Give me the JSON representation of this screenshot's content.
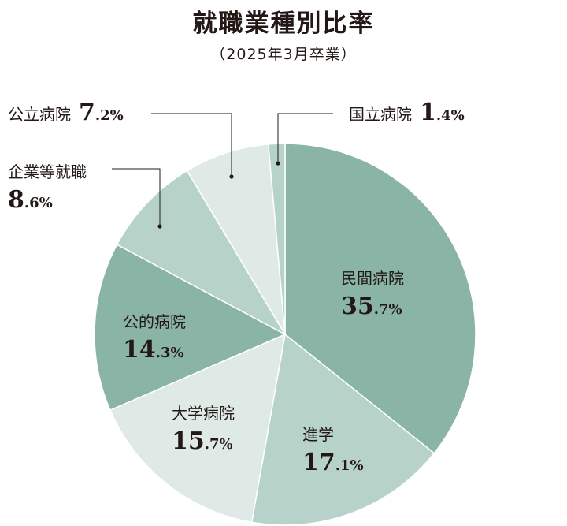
{
  "header": {
    "title": "就職業種別比率",
    "subtitle": "（2025年3月卒業）"
  },
  "chart_data": {
    "type": "pie",
    "title": "就職業種別比率",
    "subtitle": "（2025年3月卒業）",
    "unit": "%",
    "start": "12 o'clock",
    "direction": "clockwise",
    "slices": [
      {
        "label": "民間病院",
        "value": 35.7,
        "int": "35",
        "dec": ".7",
        "color": "#8ab4a6"
      },
      {
        "label": "進学",
        "value": 17.1,
        "int": "17",
        "dec": ".1",
        "color": "#b7d3c9"
      },
      {
        "label": "大学病院",
        "value": 15.7,
        "int": "15",
        "dec": ".7",
        "color": "#dfeae6"
      },
      {
        "label": "公的病院",
        "value": 14.3,
        "int": "14",
        "dec": ".3",
        "color": "#8ab4a6"
      },
      {
        "label": "企業等就職",
        "value": 8.6,
        "int": "8",
        "dec": ".6",
        "color": "#b7d3c9"
      },
      {
        "label": "公立病院",
        "value": 7.2,
        "int": "7",
        "dec": ".2",
        "color": "#dfeae6"
      },
      {
        "label": "国立病院",
        "value": 1.4,
        "int": "1",
        "dec": ".4",
        "color": "#b7d3c9"
      }
    ]
  }
}
